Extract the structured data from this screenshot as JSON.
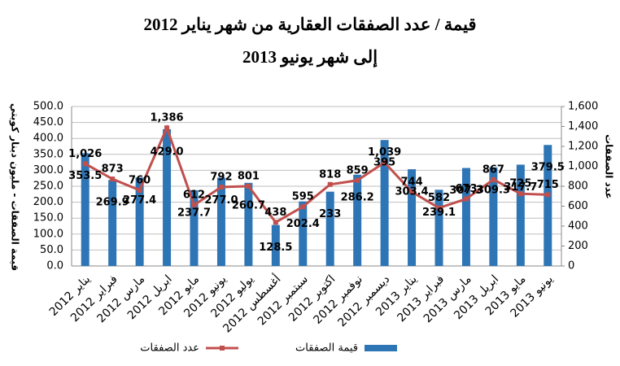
{
  "chart_data": {
    "type": "bar",
    "title": [
      "قيمة / عدد الصفقات العقارية من شهر يناير 2012",
      "إلى شهر يونيو 2013"
    ],
    "ylabel": "قيمة الصفقات - مليون دينار كويتي",
    "y2label": "عدد الصفقات",
    "categories": [
      "يناير 2012",
      "فبراير 2012",
      "مارس 2012",
      "ابريل 2012",
      "مايو 2012",
      "يونيو 2012",
      "يوليو 2012",
      "أغسطس 2012",
      "سبتمبر 2012",
      "اكتوبر 2012",
      "نوفمبر 2012",
      "ديسمبر 2012",
      "يناير 2013",
      "فبراير 2013",
      "مارس 2013",
      "ابريل 2013",
      "مايو 2013",
      "يونيو 2013"
    ],
    "series": [
      {
        "name": "قيمة الصفقات",
        "type": "bar",
        "color": "#2e75b6",
        "values": [
          353.5,
          269.9,
          277.4,
          429.0,
          237.7,
          277.0,
          260.7,
          128.5,
          202.4,
          233,
          286.2,
          395,
          303.4,
          239.1,
          307.3,
          309.3,
          317.7,
          379.5
        ],
        "value_labels": [
          "353.5",
          "269.9",
          "277.4",
          "429.0",
          "237.7",
          "277.0",
          "260.7",
          "128.5",
          "202.4",
          "233",
          "286.2",
          "395",
          "303.4",
          "239.1",
          "307.3",
          "309.3",
          "317.7",
          "379.5"
        ]
      },
      {
        "name": "عدد الصفقات",
        "type": "line",
        "axis": "y2",
        "color": "#c0504d",
        "values": [
          1026,
          873,
          760,
          1386,
          612,
          792,
          801,
          438,
          595,
          818,
          859,
          1039,
          744,
          582,
          673,
          867,
          725,
          715
        ],
        "value_labels": [
          "1,026",
          "873",
          "760",
          "1,386",
          "612",
          "792",
          "801",
          "438",
          "595",
          "818",
          "859",
          "1,039",
          "744",
          "582",
          "673",
          "867",
          "725",
          "715"
        ]
      }
    ],
    "ylim": [
      0,
      500
    ],
    "yticks": [
      {
        "value": 0,
        "label": "0.0"
      },
      {
        "value": 50,
        "label": "50.0"
      },
      {
        "value": 100,
        "label": "100.0"
      },
      {
        "value": 150,
        "label": "150.0"
      },
      {
        "value": 200,
        "label": "200.0"
      },
      {
        "value": 250,
        "label": "250.0"
      },
      {
        "value": 300,
        "label": "300.0"
      },
      {
        "value": 350,
        "label": "350.0"
      },
      {
        "value": 400,
        "label": "400.0"
      },
      {
        "value": 450,
        "label": "450.0"
      },
      {
        "value": 500,
        "label": "500.0"
      }
    ],
    "y2lim": [
      0,
      1600
    ],
    "y2ticks": [
      0,
      200,
      400,
      600,
      800,
      {
        "value": 1000,
        "label": "1,000"
      },
      {
        "value": 1200,
        "label": "1,200"
      },
      {
        "value": 1400,
        "label": "1,400"
      },
      {
        "value": 1600,
        "label": "1,600"
      }
    ],
    "grid": true,
    "legend": "bottom"
  }
}
